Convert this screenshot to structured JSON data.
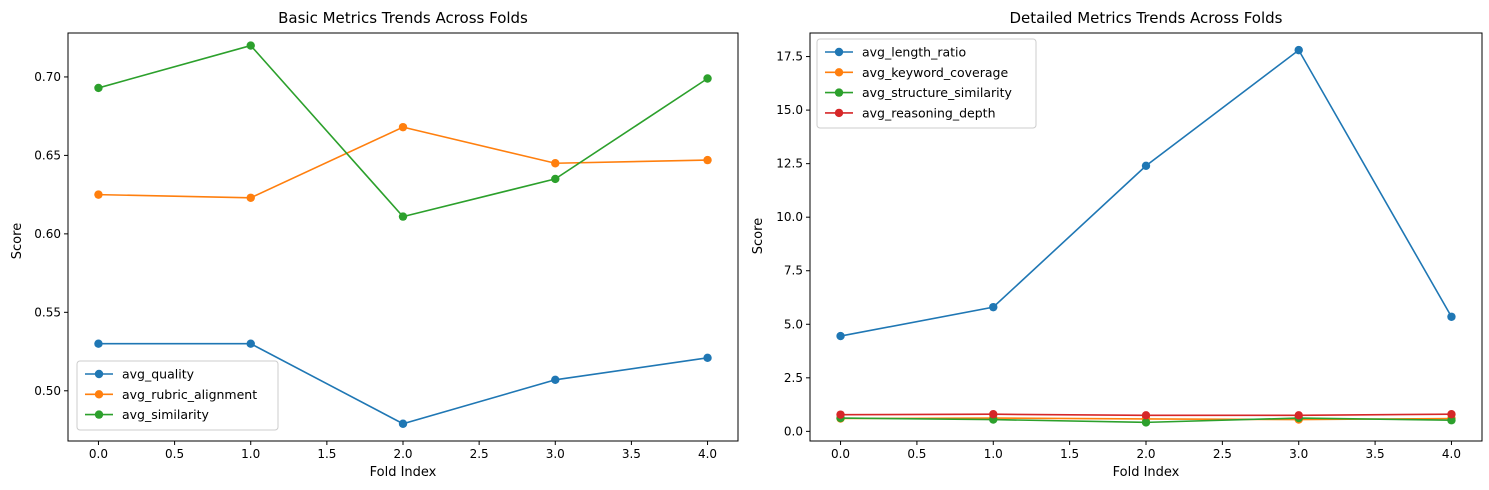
{
  "chart_data": [
    {
      "type": "line",
      "title": "Basic Metrics Trends Across Folds",
      "xlabel": "Fold Index",
      "ylabel": "Score",
      "x": [
        0,
        1,
        2,
        3,
        4
      ],
      "xlim": [
        -0.2,
        4.2
      ],
      "ylim": [
        0.468,
        0.728
      ],
      "xticks": [
        0.0,
        0.5,
        1.0,
        1.5,
        2.0,
        2.5,
        3.0,
        3.5,
        4.0
      ],
      "xtick_labels": [
        "0.0",
        "0.5",
        "1.0",
        "1.5",
        "2.0",
        "2.5",
        "3.0",
        "3.5",
        "4.0"
      ],
      "yticks": [
        0.5,
        0.55,
        0.6,
        0.65,
        0.7
      ],
      "ytick_labels": [
        "0.50",
        "0.55",
        "0.60",
        "0.65",
        "0.70"
      ],
      "legend": "lower-left",
      "grid": false,
      "series": [
        {
          "name": "avg_quality",
          "color": "#1f77b4",
          "values": [
            0.53,
            0.53,
            0.479,
            0.507,
            0.521
          ]
        },
        {
          "name": "avg_rubric_alignment",
          "color": "#ff7f0e",
          "values": [
            0.625,
            0.623,
            0.668,
            0.645,
            0.647
          ]
        },
        {
          "name": "avg_similarity",
          "color": "#2ca02c",
          "values": [
            0.693,
            0.72,
            0.611,
            0.635,
            0.699
          ]
        }
      ]
    },
    {
      "type": "line",
      "title": "Detailed Metrics Trends Across Folds",
      "xlabel": "Fold Index",
      "ylabel": "Score",
      "x": [
        0,
        1,
        2,
        3,
        4
      ],
      "xlim": [
        -0.2,
        4.2
      ],
      "ylim": [
        -0.45,
        18.6
      ],
      "xticks": [
        0.0,
        0.5,
        1.0,
        1.5,
        2.0,
        2.5,
        3.0,
        3.5,
        4.0
      ],
      "xtick_labels": [
        "0.0",
        "0.5",
        "1.0",
        "1.5",
        "2.0",
        "2.5",
        "3.0",
        "3.5",
        "4.0"
      ],
      "yticks": [
        0.0,
        2.5,
        5.0,
        7.5,
        10.0,
        12.5,
        15.0,
        17.5
      ],
      "ytick_labels": [
        "0.0",
        "2.5",
        "5.0",
        "7.5",
        "10.0",
        "12.5",
        "15.0",
        "17.5"
      ],
      "legend": "upper-left",
      "grid": false,
      "series": [
        {
          "name": "avg_length_ratio",
          "color": "#1f77b4",
          "values": [
            4.45,
            5.8,
            12.4,
            17.8,
            5.35
          ]
        },
        {
          "name": "avg_keyword_coverage",
          "color": "#ff7f0e",
          "values": [
            0.6,
            0.62,
            0.58,
            0.55,
            0.6
          ]
        },
        {
          "name": "avg_structure_similarity",
          "color": "#2ca02c",
          "values": [
            0.62,
            0.55,
            0.42,
            0.62,
            0.52
          ]
        },
        {
          "name": "avg_reasoning_depth",
          "color": "#d62728",
          "values": [
            0.78,
            0.8,
            0.75,
            0.75,
            0.8
          ]
        }
      ]
    }
  ]
}
